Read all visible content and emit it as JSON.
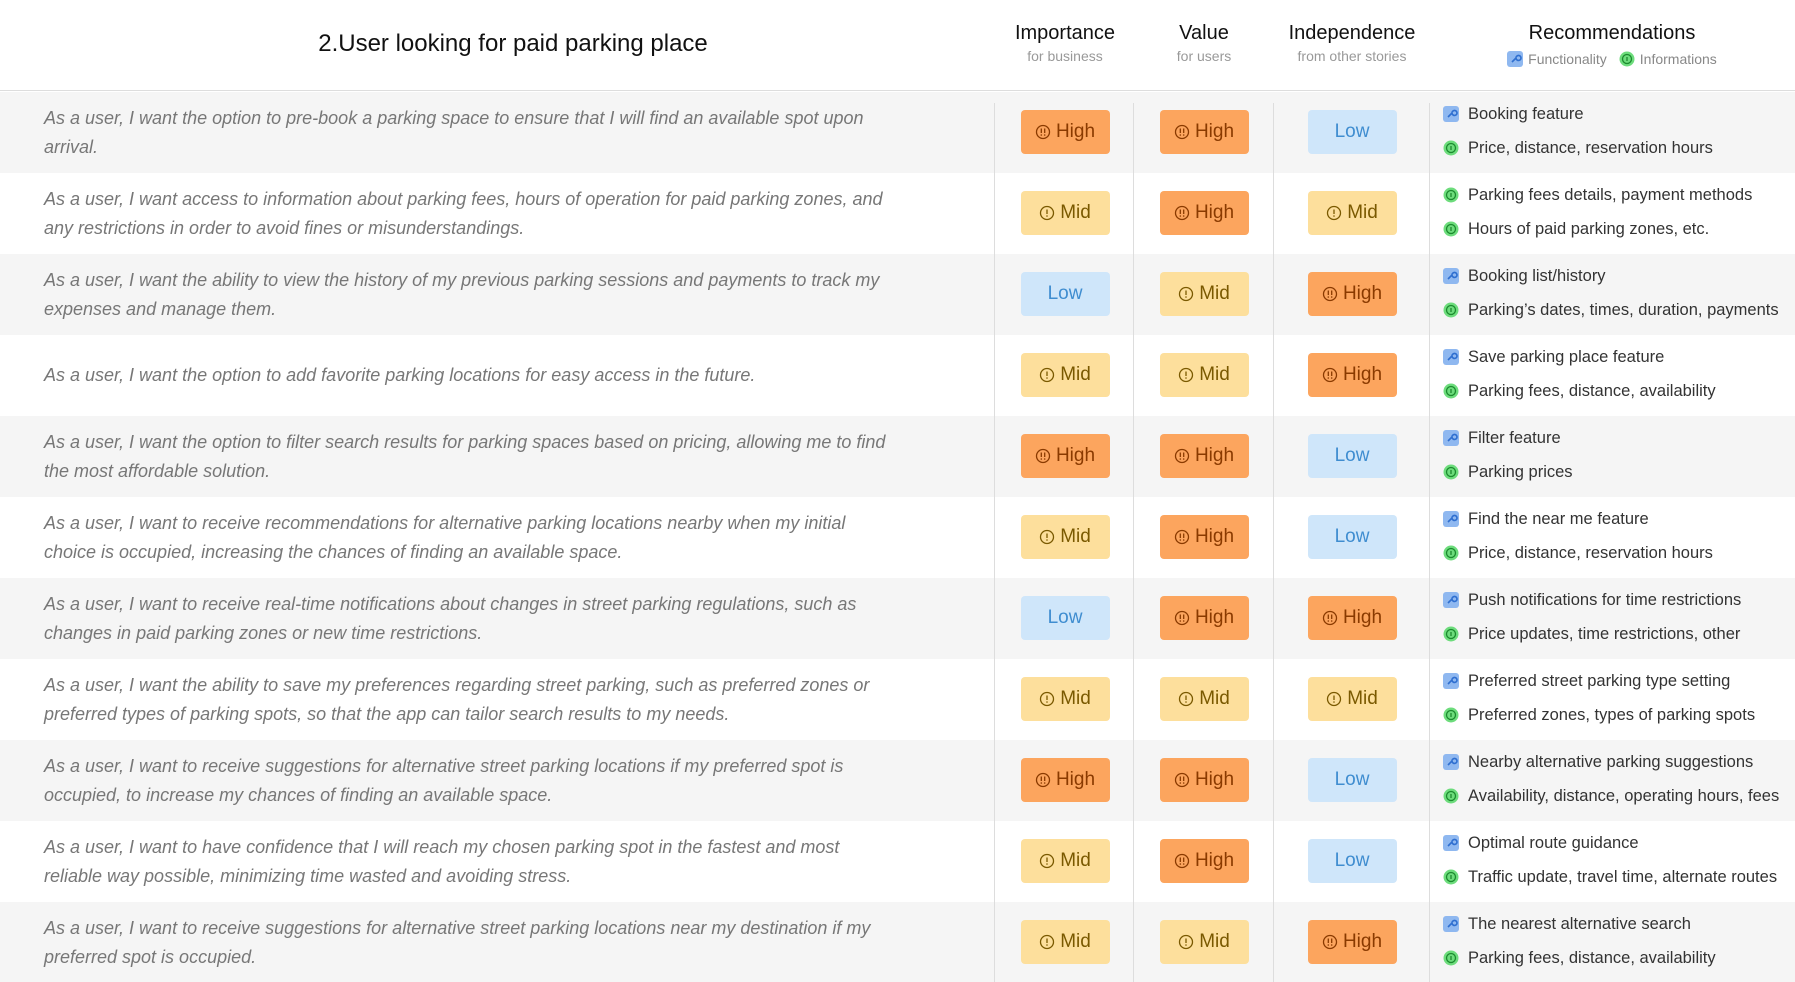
{
  "header": {
    "title": "2.User looking for paid parking place",
    "columns": [
      {
        "title": "Importance",
        "subtitle": "for business"
      },
      {
        "title": "Value",
        "subtitle": "for users"
      },
      {
        "title": "Independence",
        "subtitle": "from other stories"
      }
    ],
    "recommendations": {
      "title": "Recommendations",
      "legend": [
        "Functionality",
        "Informations"
      ]
    }
  },
  "rows": [
    {
      "story": "As a user, I want the option to pre-book a parking space to ensure that I will find an available spot upon arrival.",
      "levels": [
        "High",
        "High",
        "Low"
      ],
      "functionality": "Booking feature",
      "information": "Price, distance, reservation hours"
    },
    {
      "story": "As a user, I want access to information about parking fees, hours of operation for paid parking zones, and any restrictions in order to avoid fines or misunderstandings.",
      "levels": [
        "Mid",
        "High",
        "Mid"
      ],
      "functionality": null,
      "information": "Parking fees details,  payment methods",
      "information2": "Hours of paid parking zones, etc."
    },
    {
      "story": "As a user, I want the ability to view the history of my previous parking sessions and payments to track my expenses and manage them.",
      "levels": [
        "Low",
        "Mid",
        "High"
      ],
      "functionality": "Booking list/history",
      "information": "Parking’s dates, times, duration, payments"
    },
    {
      "story": "As a user, I want the option to add favorite parking locations for easy access in the future.",
      "levels": [
        "Mid",
        "Mid",
        "High"
      ],
      "functionality": "Save parking place feature",
      "information": "Parking fees, distance, availability"
    },
    {
      "story": "As a user, I want the option to filter search results for parking spaces based on pricing, allowing me to find the most affordable solution.",
      "levels": [
        "High",
        "High",
        "Low"
      ],
      "functionality": "Filter feature",
      "information": "Parking prices"
    },
    {
      "story": "As a user, I want to receive recommendations for alternative parking locations nearby when my initial choice is occupied, increasing the chances of finding an available space.",
      "levels": [
        "Mid",
        "High",
        "Low"
      ],
      "functionality": "Find the near me feature",
      "information": "Price, distance, reservation hours"
    },
    {
      "story": "As a user, I want to receive real-time notifications about changes in street parking regulations, such as changes in paid parking zones or new time restrictions.",
      "levels": [
        "Low",
        "High",
        "High"
      ],
      "functionality": "Push notifications for time restrictions",
      "information": "Price updates, time restrictions, other"
    },
    {
      "story": "As a user, I want the ability to save my preferences regarding street parking, such as preferred zones or preferred types of parking spots, so that the app can tailor search results to my needs.",
      "levels": [
        "Mid",
        "Mid",
        "Mid"
      ],
      "functionality": "Preferred street parking type setting",
      "information": "Preferred zones, types of parking spots"
    },
    {
      "story": "As a user, I want to receive suggestions for alternative street parking locations if my preferred spot is occupied, to increase my chances of finding an available space.",
      "levels": [
        "High",
        "High",
        "Low"
      ],
      "functionality": "Nearby alternative parking suggestions",
      "information": "Availability, distance, operating hours, fees"
    },
    {
      "story": "As a user, I want to have confidence that I will reach my chosen parking spot in the fastest and most reliable way possible, minimizing time wasted and avoiding stress.",
      "levels": [
        "Mid",
        "High",
        "Low"
      ],
      "functionality": "Optimal route guidance",
      "information": "Traffic update, travel time, alternate routes"
    },
    {
      "story": "As a user, I want to receive suggestions for alternative street parking locations near my destination if my preferred spot is occupied.",
      "levels": [
        "Mid",
        "Mid",
        "High"
      ],
      "functionality": "The nearest alternative search",
      "information": "Parking fees, distance, availability"
    }
  ]
}
